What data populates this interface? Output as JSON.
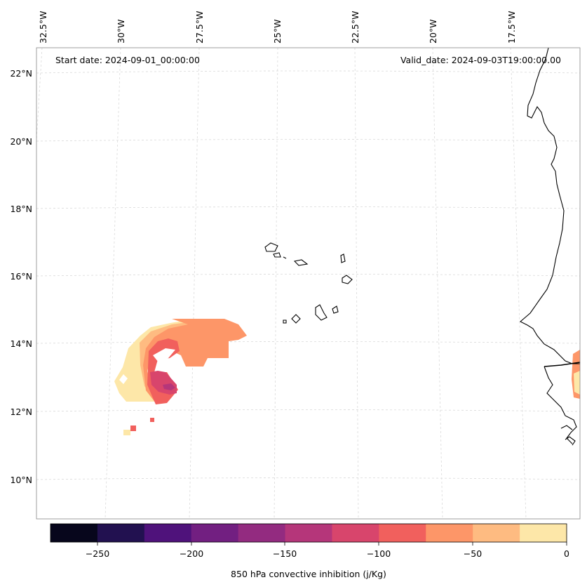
{
  "map": {
    "start_date": "Start date: 2024-09-01_00:00:00",
    "valid_date": "Valid_date: 2024-09-03T19:00:00.00",
    "lon_labels": [
      "32.5°W",
      "30°W",
      "27.5°W",
      "25°W",
      "22.5°W",
      "20°W",
      "17.5°W"
    ],
    "lat_labels": [
      "22°N",
      "20°N",
      "18°N",
      "16°N",
      "14°N",
      "12°N",
      "10°N"
    ]
  },
  "colorbar": {
    "label": "850 hPa convective inhibition (j/Kg)",
    "ticks": [
      "−250",
      "−200",
      "−150",
      "−100",
      "−50",
      "0"
    ],
    "levels": [
      -275,
      -250,
      -225,
      -200,
      -175,
      -150,
      -125,
      -100,
      -75,
      -50,
      -25,
      0
    ],
    "colors": [
      "#07061c",
      "#221150",
      "#4f127b",
      "#721f81",
      "#932b80",
      "#b5367a",
      "#d8456c",
      "#f1605d",
      "#fd9668",
      "#febb81",
      "#fde7a8"
    ]
  }
}
